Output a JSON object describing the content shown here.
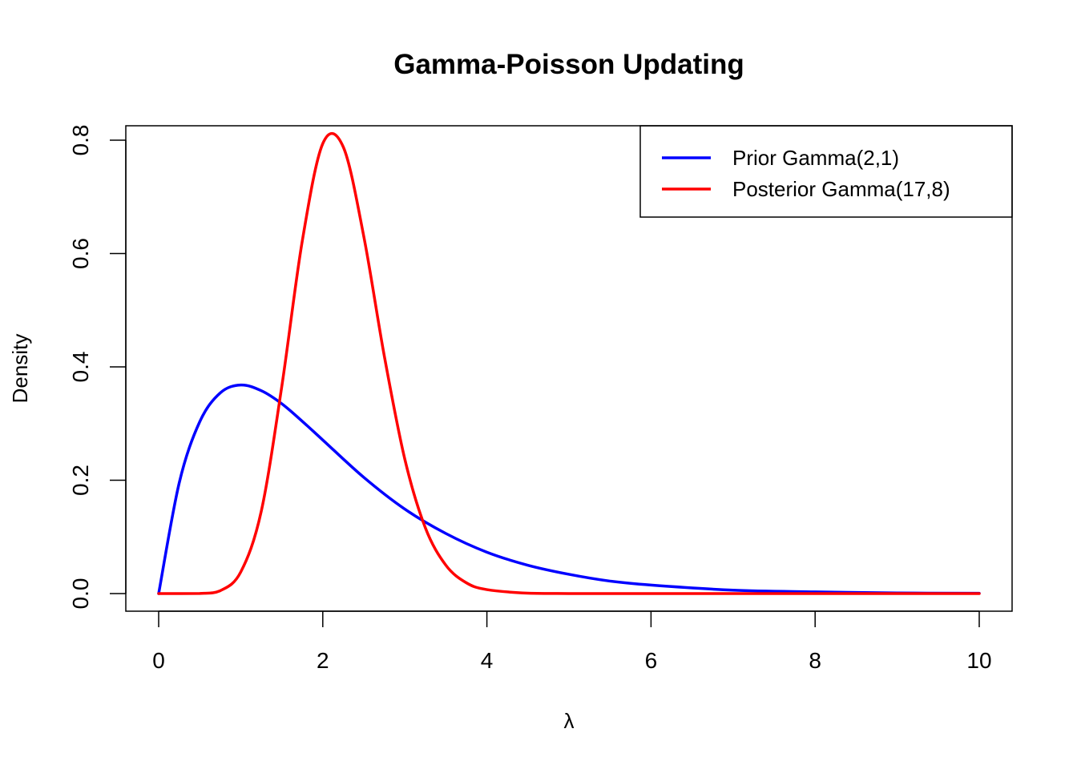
{
  "chart_data": {
    "type": "line",
    "title": "Gamma-Poisson Updating",
    "xlabel": "λ",
    "ylabel": "Density",
    "xlim": [
      0,
      10
    ],
    "ylim": [
      0,
      0.8
    ],
    "x_ticks": [
      "0",
      "2",
      "4",
      "6",
      "8",
      "10"
    ],
    "y_ticks": [
      "0.0",
      "0.2",
      "0.4",
      "0.6",
      "0.8"
    ],
    "grid": false,
    "legend_position": "top-right",
    "series": [
      {
        "name": "Prior Gamma(2,1)",
        "color": "#0000ff",
        "x": [
          0,
          0.25,
          0.5,
          0.75,
          1,
          1.25,
          1.5,
          1.75,
          2,
          2.5,
          3,
          3.5,
          4,
          4.5,
          5,
          5.5,
          6,
          7,
          8,
          9,
          10
        ],
        "values": [
          0,
          0.195,
          0.303,
          0.354,
          0.368,
          0.358,
          0.335,
          0.304,
          0.271,
          0.205,
          0.149,
          0.106,
          0.073,
          0.05,
          0.034,
          0.022,
          0.015,
          0.006,
          0.003,
          0.001,
          0.0005
        ]
      },
      {
        "name": "Posterior Gamma(17,8)",
        "color": "#ff0000",
        "x": [
          0,
          0.5,
          0.75,
          1,
          1.25,
          1.5,
          1.75,
          2,
          2.25,
          2.5,
          2.75,
          3,
          3.25,
          3.5,
          3.75,
          4,
          4.5,
          5,
          6,
          8,
          10
        ],
        "values": [
          0,
          0.0002,
          0.005,
          0.038,
          0.145,
          0.365,
          0.622,
          0.794,
          0.788,
          0.63,
          0.419,
          0.237,
          0.116,
          0.05,
          0.019,
          0.007,
          0.0007,
          5e-05,
          0,
          0,
          0
        ]
      }
    ]
  }
}
